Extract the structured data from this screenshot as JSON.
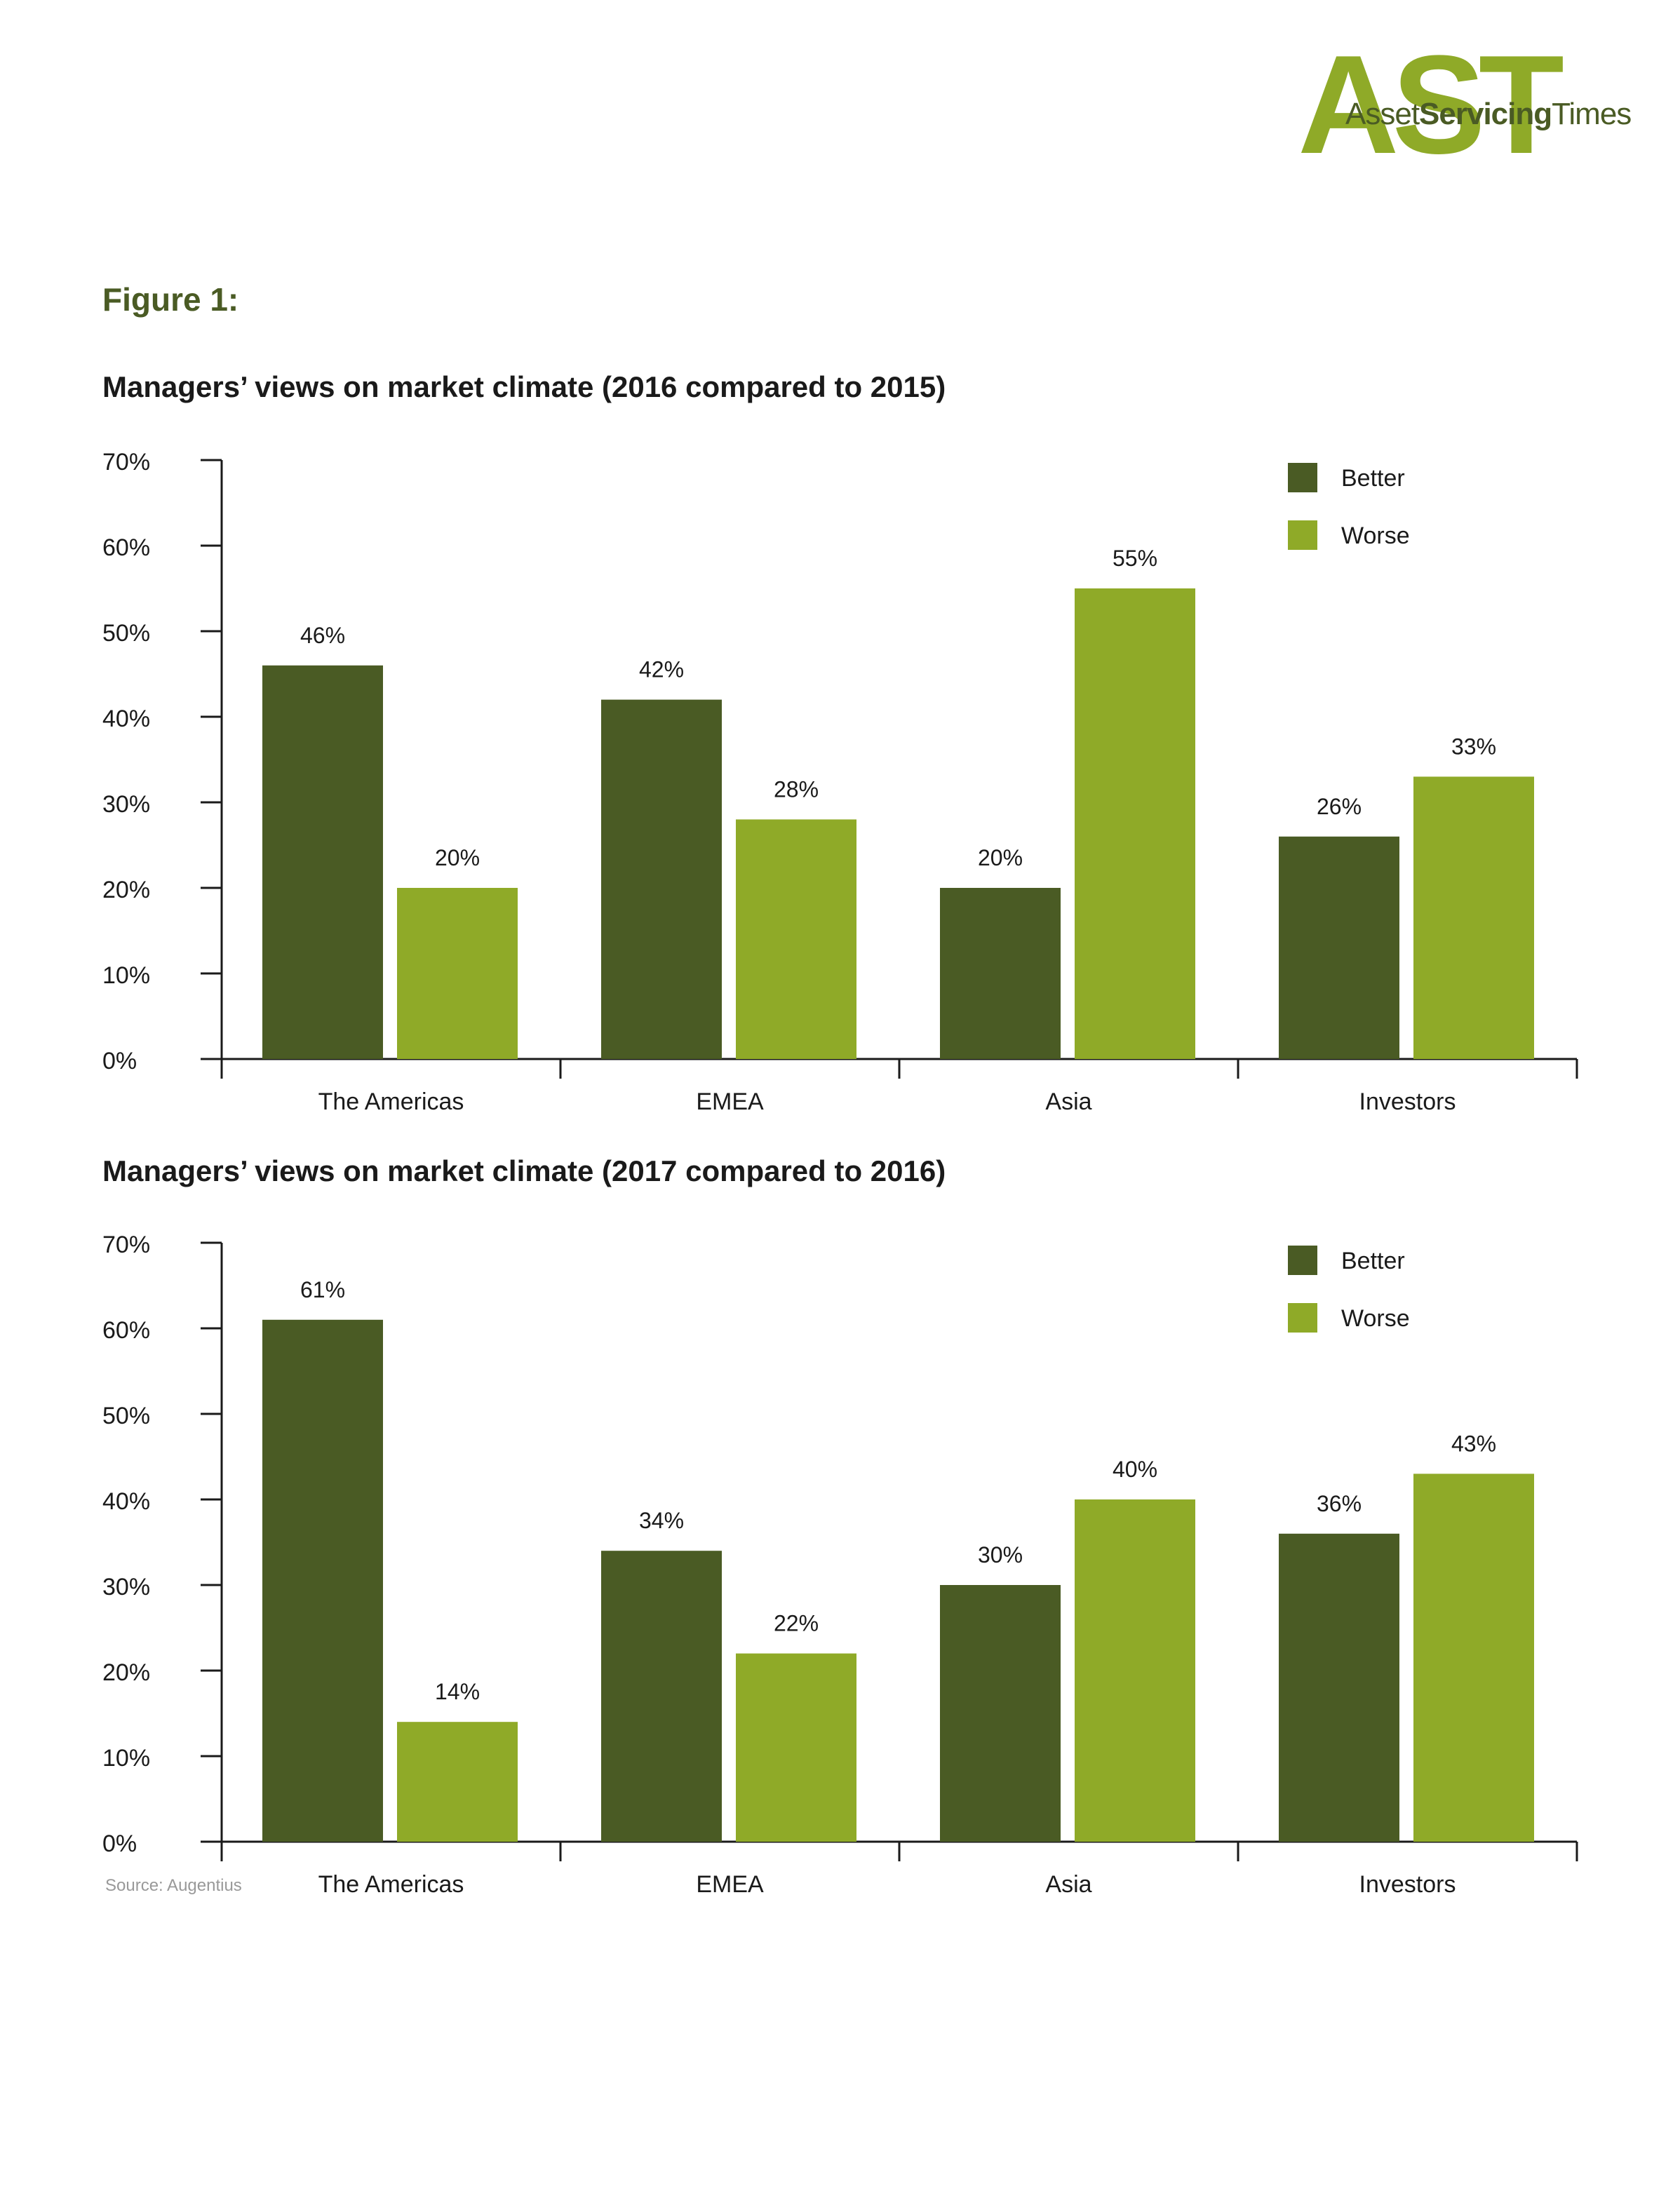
{
  "logo": {
    "big": "AST",
    "small_a": "Asset",
    "small_b": "Servicing",
    "small_c": "Times"
  },
  "figure_label": "Figure 1:",
  "source": "Source: Augentius",
  "colors": {
    "better": "#4a5b24",
    "worse": "#8faa28",
    "accent": "#4a5b24"
  },
  "chart_data": [
    {
      "type": "bar",
      "title": "Managers’ views on market climate (2016 compared to 2015)",
      "categories": [
        "The Americas",
        "EMEA",
        "Asia",
        "Investors"
      ],
      "series": [
        {
          "name": "Better",
          "values": [
            46,
            42,
            20,
            26
          ]
        },
        {
          "name": "Worse",
          "values": [
            20,
            28,
            55,
            33
          ]
        }
      ],
      "yticks": [
        "0%",
        "10%",
        "20%",
        "30%",
        "40%",
        "50%",
        "60%",
        "70%"
      ],
      "ylim": [
        0,
        70
      ],
      "unit": "%",
      "legend": "top-right",
      "grid": false
    },
    {
      "type": "bar",
      "title": "Managers’ views on market climate (2017 compared to 2016)",
      "categories": [
        "The Americas",
        "EMEA",
        "Asia",
        "Investors"
      ],
      "series": [
        {
          "name": "Better",
          "values": [
            61,
            34,
            30,
            36
          ]
        },
        {
          "name": "Worse",
          "values": [
            14,
            22,
            40,
            43
          ]
        }
      ],
      "yticks": [
        "0%",
        "10%",
        "20%",
        "30%",
        "40%",
        "50%",
        "60%",
        "70%"
      ],
      "ylim": [
        0,
        70
      ],
      "unit": "%",
      "legend": "top-right",
      "grid": false
    }
  ]
}
